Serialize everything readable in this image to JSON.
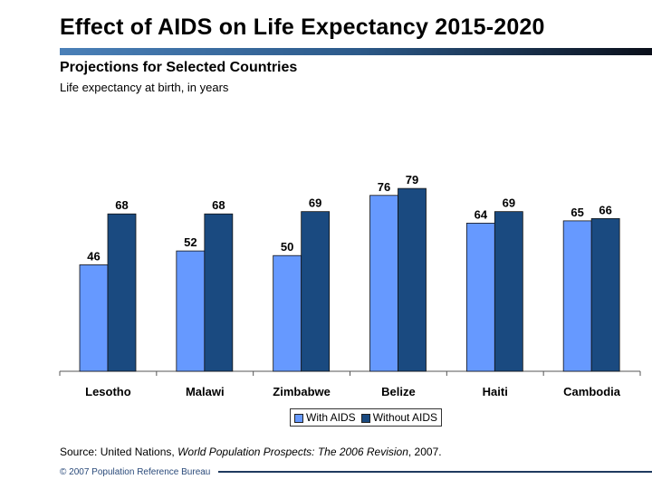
{
  "title": "Effect of AIDS on Life Expectancy 2015-2020",
  "subtitle": "Projections for Selected Countries",
  "unit_label": "Life expectancy at birth, in years",
  "source": {
    "prefix": "Source: United Nations, ",
    "italic": "World Population Prospects: The 2006 Revision",
    "suffix": ", 2007."
  },
  "copyright": "© 2007 Population Reference Bureau",
  "chart_data": {
    "type": "bar",
    "categories": [
      "Lesotho",
      "Malawi",
      "Zimbabwe",
      "Belize",
      "Haiti",
      "Cambodia"
    ],
    "series": [
      {
        "name": "With AIDS",
        "values": [
          46,
          52,
          50,
          76,
          64,
          65
        ],
        "color": "#6699ff"
      },
      {
        "name": "Without AIDS",
        "values": [
          68,
          68,
          69,
          79,
          69,
          66
        ],
        "color": "#1a4a80"
      }
    ],
    "ylim": [
      0,
      90
    ],
    "grid": false,
    "legend": "bottom",
    "data_labels": true
  }
}
